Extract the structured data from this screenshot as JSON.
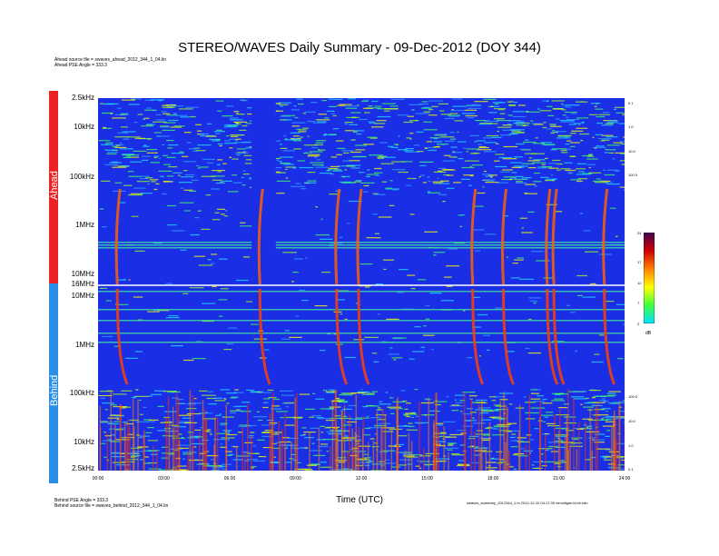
{
  "title": "STEREO/WAVES Daily Summary - 09-Dec-2012 (DOY 344)",
  "header_notes": {
    "ahead_source": "Ahead source file = swaves_ahead_2012_344_1_04.lin",
    "ahead_angle": "Ahead PSE Angle = 333.3"
  },
  "footer_notes": {
    "behind_angle": "Behind PSE Angle = 333.3",
    "behind_source": "Behind source file = swaves_behind_2012_344_1_04.lin",
    "generated": "swaves_summary_2012344_1.m 2012-12-10 04:17:30 mmulligan.ls.bit.edu"
  },
  "panels": {
    "ahead_label": "Ahead",
    "behind_label": "Behind"
  },
  "colors": {
    "ahead_bar": "#ee2222",
    "behind_bar": "#2a8ee8",
    "background": "#1a2ee6"
  },
  "chart_data": {
    "type": "heatmap",
    "title": "STEREO/WAVES Daily Summary - 09-Dec-2012 (DOY 344)",
    "xlabel": "Time (UTC)",
    "x_ticks": [
      "00:00",
      "03:00",
      "06:00",
      "09:00",
      "12:00",
      "15:00",
      "18:00",
      "21:00",
      "24:00"
    ],
    "ahead_freq_ticks": [
      "2.5kHz",
      "10kHz",
      "100kHz",
      "1MHz",
      "10MHz",
      "16MHz"
    ],
    "behind_freq_ticks": [
      "10MHz",
      "1MHz",
      "100kHz",
      "10kHz",
      "2.5kHz"
    ],
    "ahead_right_ticks": [
      "0.1",
      "1.0",
      "10.0",
      "100.0"
    ],
    "behind_right_ticks": [
      "100.0",
      "10.0",
      "1.0",
      "0.1"
    ],
    "colorbar": {
      "ticks": [
        "24",
        "17",
        "12",
        "7",
        "2"
      ],
      "unit": "dB",
      "range": [
        2,
        24
      ]
    },
    "x_range_hours": [
      0,
      24
    ],
    "data_gap_ahead_hours": [
      7.0,
      8.1
    ],
    "radio_bursts_hours": [
      1.0,
      7.5,
      11.0,
      12.0,
      17.2,
      18.6,
      20.6,
      20.9,
      23.2
    ]
  }
}
